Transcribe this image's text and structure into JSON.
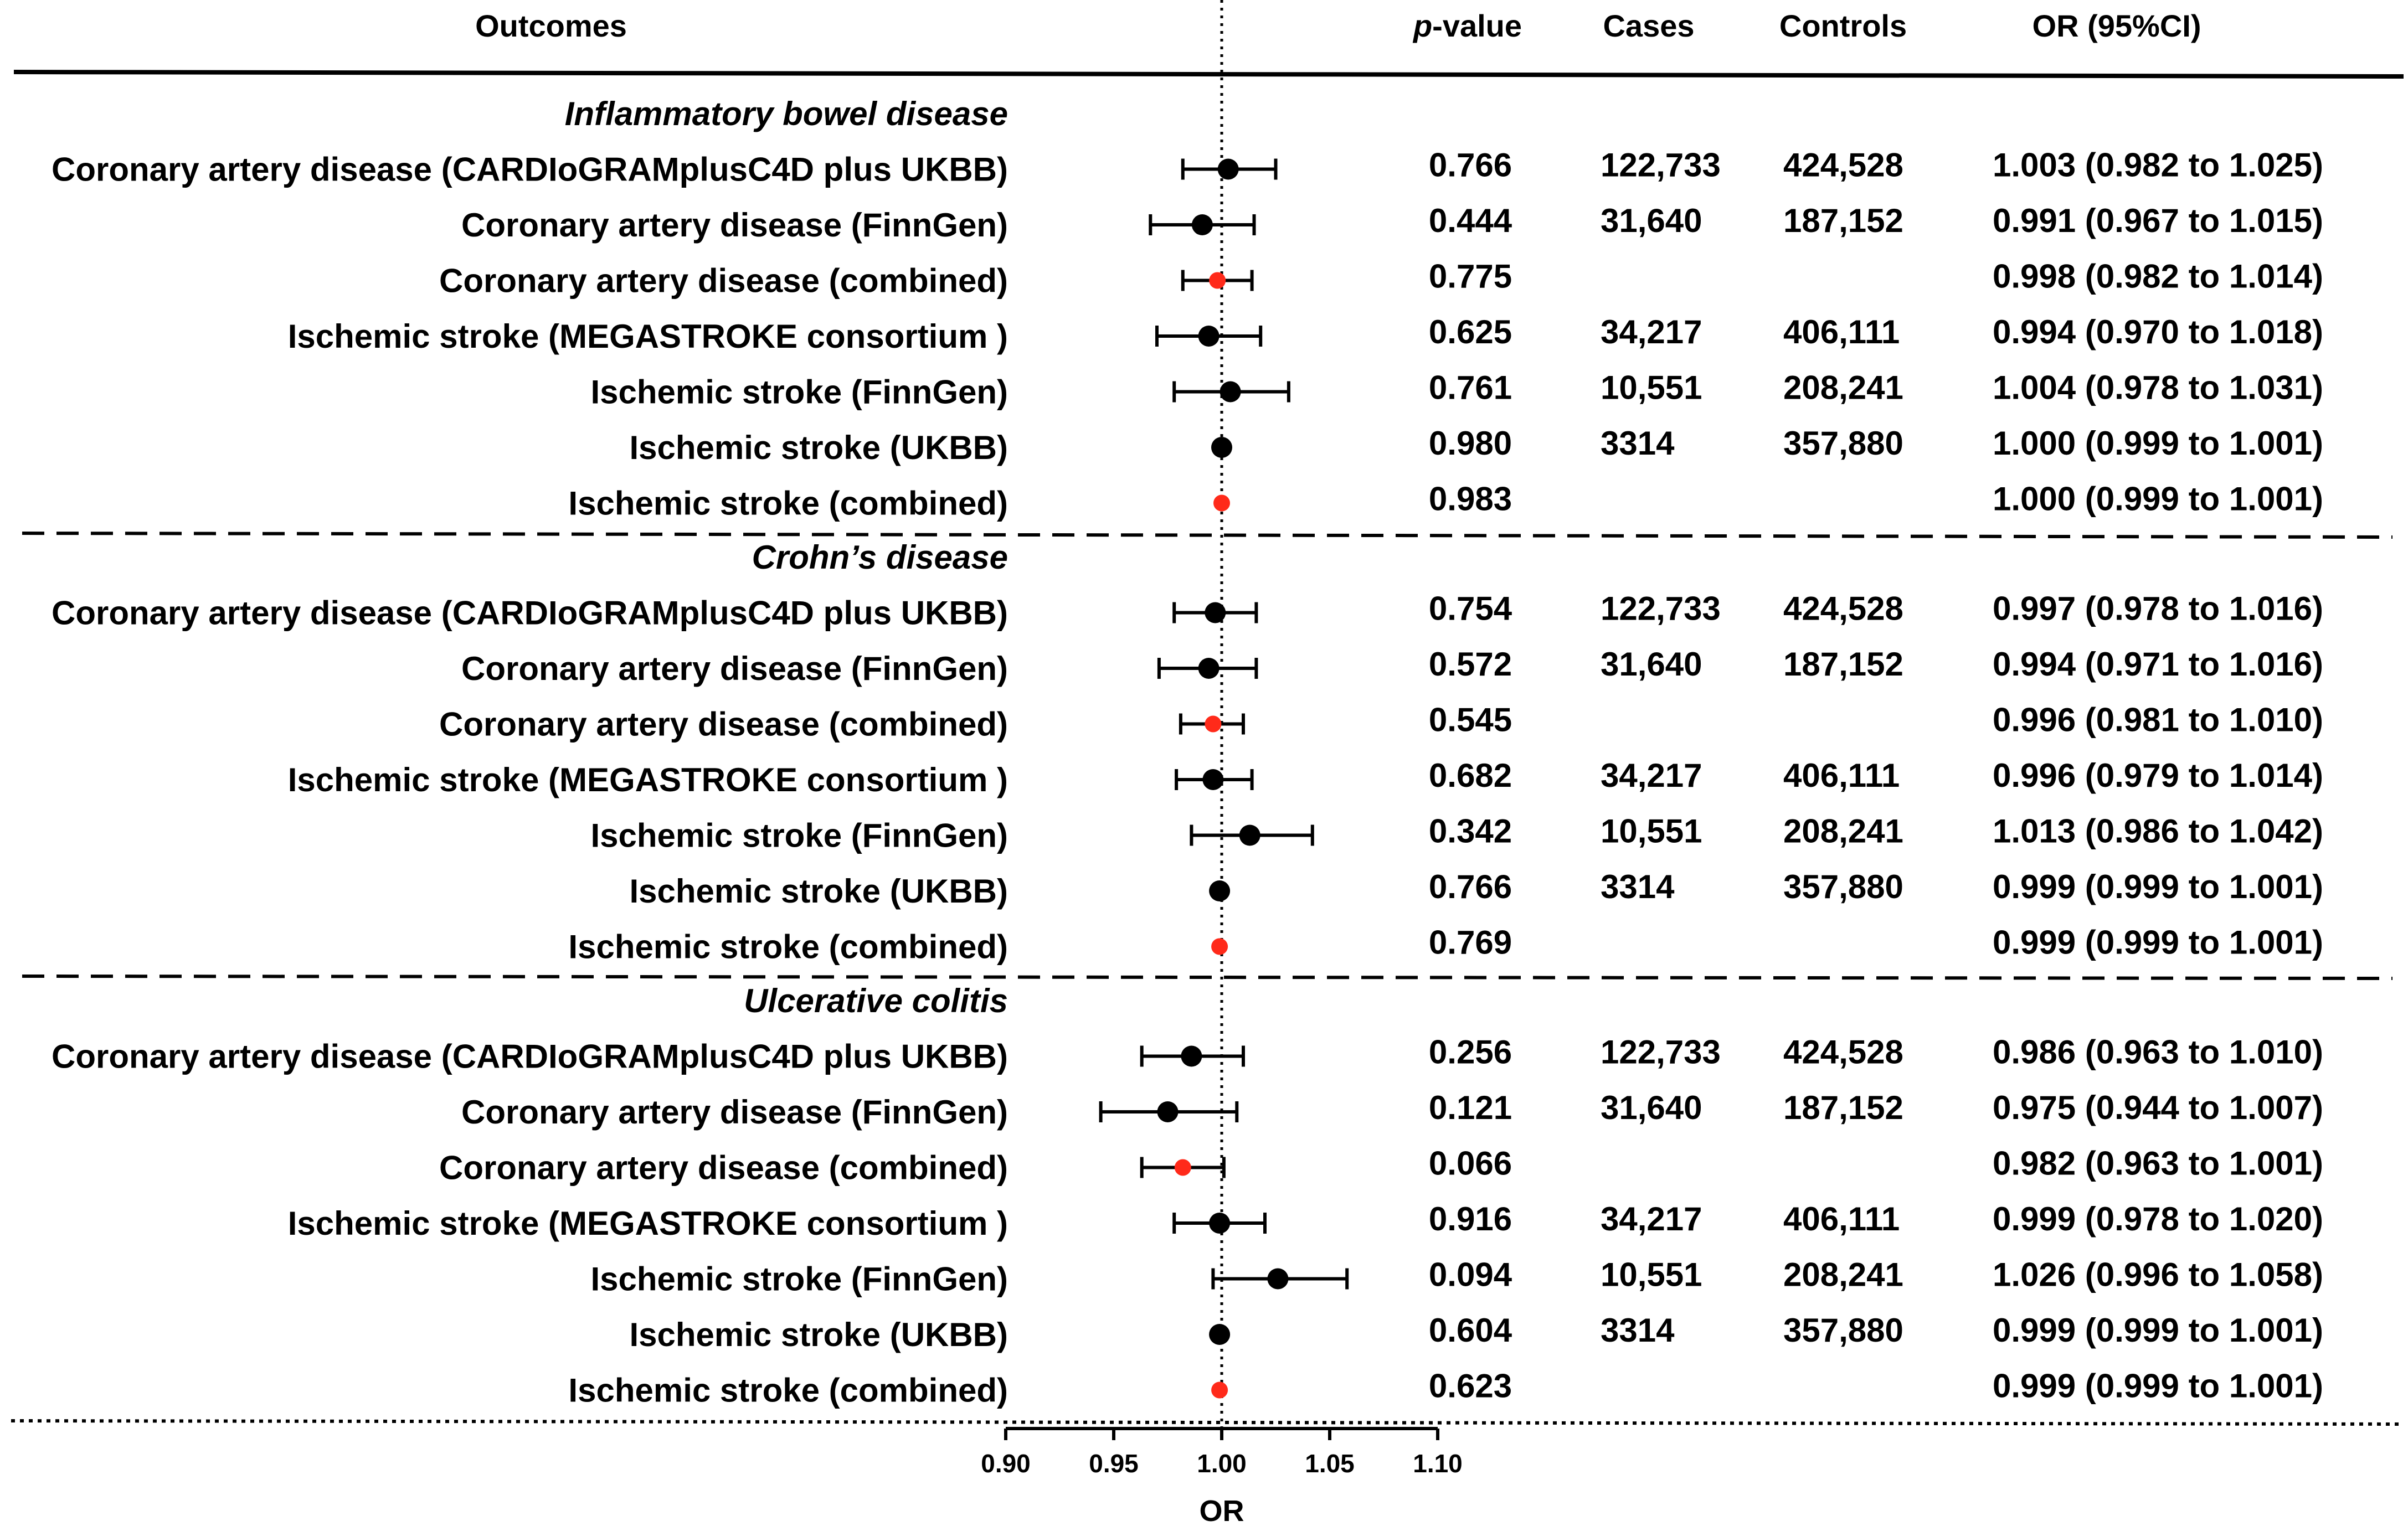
{
  "headers": {
    "outcomes": "Outcomes",
    "p_prefix": "p",
    "p_suffix": "-value",
    "cases": "Cases",
    "controls": "Controls",
    "or_ci": "OR (95%CI)"
  },
  "colors": {
    "study": "#000000",
    "combined": "#ff2a1a",
    "text": "#000000"
  },
  "chart_data": {
    "type": "forest",
    "title": "",
    "xlabel": "OR",
    "xlim": [
      0.9,
      1.1
    ],
    "xticks": [
      "0.90",
      "0.95",
      "1.00",
      "1.05",
      "1.10"
    ],
    "xtick_values": [
      0.9,
      0.95,
      1.0,
      1.05,
      1.1
    ],
    "reference_line": 1.0,
    "groups": [
      {
        "name": "Inflammatory bowel disease",
        "rows": [
          {
            "outcome": "Coronary artery disease (CARDIoGRAMplusC4D plus UKBB)",
            "p": "0.766",
            "cases": "122,733",
            "controls": "424,528",
            "or_text": "1.003 (0.982 to 1.025)",
            "or": 1.003,
            "lo": 0.982,
            "hi": 1.025,
            "combined": false
          },
          {
            "outcome": "Coronary artery disease (FinnGen)",
            "p": "0.444",
            "cases": "31,640",
            "controls": "187,152",
            "or_text": "0.991 (0.967 to 1.015)",
            "or": 0.991,
            "lo": 0.967,
            "hi": 1.015,
            "combined": false
          },
          {
            "outcome": "Coronary artery disease (combined)",
            "p": "0.775",
            "cases": "",
            "controls": "",
            "or_text": "0.998 (0.982 to 1.014)",
            "or": 0.998,
            "lo": 0.982,
            "hi": 1.014,
            "combined": true
          },
          {
            "outcome": "Ischemic stroke (MEGASTROKE consortium )",
            "p": "0.625",
            "cases": "34,217",
            "controls": "406,111",
            "or_text": "0.994 (0.970 to 1.018)",
            "or": 0.994,
            "lo": 0.97,
            "hi": 1.018,
            "combined": false
          },
          {
            "outcome": "Ischemic stroke (FinnGen)",
            "p": "0.761",
            "cases": "10,551",
            "controls": "208,241",
            "or_text": "1.004 (0.978 to 1.031)",
            "or": 1.004,
            "lo": 0.978,
            "hi": 1.031,
            "combined": false
          },
          {
            "outcome": "Ischemic stroke (UKBB)",
            "p": "0.980",
            "cases": "3314",
            "controls": "357,880",
            "or_text": "1.000 (0.999 to 1.001)",
            "or": 1.0,
            "lo": 0.999,
            "hi": 1.001,
            "combined": false
          },
          {
            "outcome": "Ischemic stroke (combined)",
            "p": "0.983",
            "cases": "",
            "controls": "",
            "or_text": "1.000 (0.999 to 1.001)",
            "or": 1.0,
            "lo": 0.999,
            "hi": 1.001,
            "combined": true
          }
        ]
      },
      {
        "name": "Crohn’s disease",
        "rows": [
          {
            "outcome": "Coronary artery disease (CARDIoGRAMplusC4D plus UKBB)",
            "p": "0.754",
            "cases": "122,733",
            "controls": "424,528",
            "or_text": "0.997 (0.978 to 1.016)",
            "or": 0.997,
            "lo": 0.978,
            "hi": 1.016,
            "combined": false
          },
          {
            "outcome": "Coronary artery disease (FinnGen)",
            "p": "0.572",
            "cases": "31,640",
            "controls": "187,152",
            "or_text": "0.994 (0.971 to 1.016)",
            "or": 0.994,
            "lo": 0.971,
            "hi": 1.016,
            "combined": false
          },
          {
            "outcome": "Coronary artery disease (combined)",
            "p": "0.545",
            "cases": "",
            "controls": "",
            "or_text": "0.996 (0.981 to 1.010)",
            "or": 0.996,
            "lo": 0.981,
            "hi": 1.01,
            "combined": true
          },
          {
            "outcome": "Ischemic stroke (MEGASTROKE consortium )",
            "p": "0.682",
            "cases": "34,217",
            "controls": "406,111",
            "or_text": "0.996 (0.979 to 1.014)",
            "or": 0.996,
            "lo": 0.979,
            "hi": 1.014,
            "combined": false
          },
          {
            "outcome": "Ischemic stroke (FinnGen)",
            "p": "0.342",
            "cases": "10,551",
            "controls": "208,241",
            "or_text": "1.013 (0.986 to 1.042)",
            "or": 1.013,
            "lo": 0.986,
            "hi": 1.042,
            "combined": false
          },
          {
            "outcome": "Ischemic stroke (UKBB)",
            "p": "0.766",
            "cases": "3314",
            "controls": "357,880",
            "or_text": "0.999 (0.999 to 1.001)",
            "or": 0.999,
            "lo": 0.999,
            "hi": 1.001,
            "combined": false
          },
          {
            "outcome": "Ischemic stroke (combined)",
            "p": "0.769",
            "cases": "",
            "controls": "",
            "or_text": "0.999 (0.999 to 1.001)",
            "or": 0.999,
            "lo": 0.999,
            "hi": 1.001,
            "combined": true
          }
        ]
      },
      {
        "name": "Ulcerative colitis",
        "rows": [
          {
            "outcome": "Coronary artery disease (CARDIoGRAMplusC4D plus UKBB)",
            "p": "0.256",
            "cases": "122,733",
            "controls": "424,528",
            "or_text": "0.986 (0.963 to 1.010)",
            "or": 0.986,
            "lo": 0.963,
            "hi": 1.01,
            "combined": false
          },
          {
            "outcome": "Coronary artery disease (FinnGen)",
            "p": "0.121",
            "cases": "31,640",
            "controls": "187,152",
            "or_text": "0.975 (0.944 to 1.007)",
            "or": 0.975,
            "lo": 0.944,
            "hi": 1.007,
            "combined": false
          },
          {
            "outcome": "Coronary artery disease (combined)",
            "p": "0.066",
            "cases": "",
            "controls": "",
            "or_text": "0.982 (0.963 to 1.001)",
            "or": 0.982,
            "lo": 0.963,
            "hi": 1.001,
            "combined": true
          },
          {
            "outcome": "Ischemic stroke (MEGASTROKE consortium )",
            "p": "0.916",
            "cases": "34,217",
            "controls": "406,111",
            "or_text": "0.999 (0.978 to 1.020)",
            "or": 0.999,
            "lo": 0.978,
            "hi": 1.02,
            "combined": false
          },
          {
            "outcome": "Ischemic stroke (FinnGen)",
            "p": "0.094",
            "cases": "10,551",
            "controls": "208,241",
            "or_text": "1.026 (0.996 to 1.058)",
            "or": 1.026,
            "lo": 0.996,
            "hi": 1.058,
            "combined": false
          },
          {
            "outcome": "Ischemic stroke (UKBB)",
            "p": "0.604",
            "cases": "3314",
            "controls": "357,880",
            "or_text": "0.999 (0.999 to 1.001)",
            "or": 0.999,
            "lo": 0.999,
            "hi": 1.001,
            "combined": false
          },
          {
            "outcome": "Ischemic stroke (combined)",
            "p": "0.623",
            "cases": "",
            "controls": "",
            "or_text": "0.999 (0.999 to 1.001)",
            "or": 0.999,
            "lo": 0.999,
            "hi": 1.001,
            "combined": true
          }
        ]
      }
    ]
  }
}
